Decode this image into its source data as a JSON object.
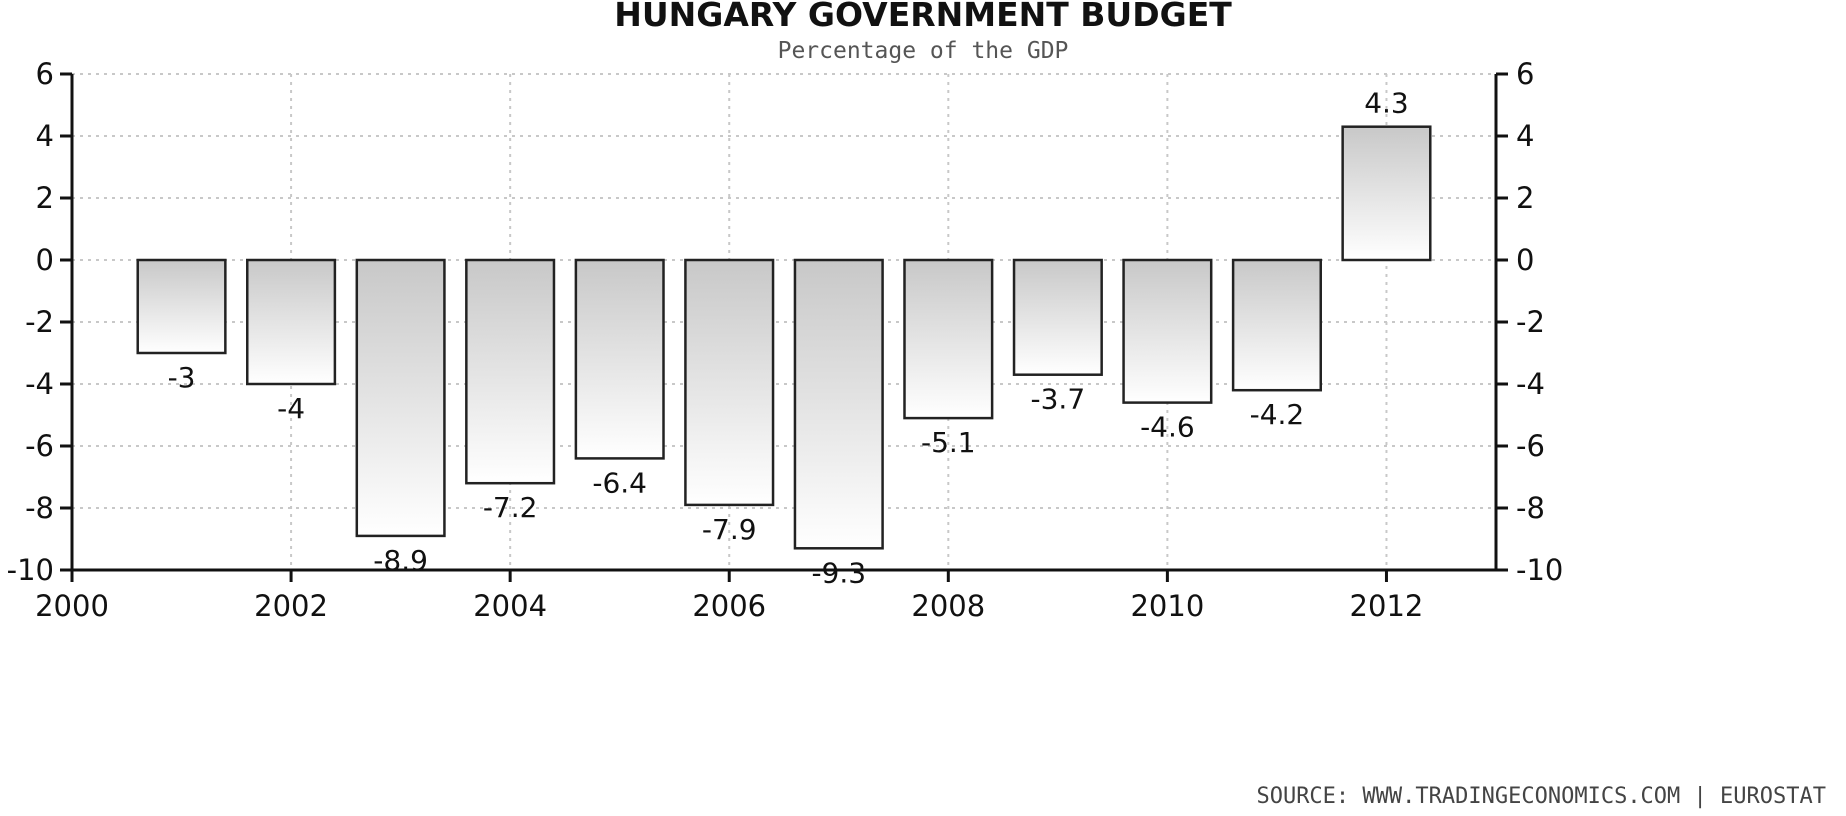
{
  "chart_data": {
    "type": "bar",
    "title": "HUNGARY GOVERNMENT BUDGET",
    "subtitle": "Percentage of the GDP",
    "categories": [
      "2001",
      "2002",
      "2003",
      "2004",
      "2005",
      "2006",
      "2007",
      "2008",
      "2009",
      "2010",
      "2011",
      "2012"
    ],
    "values": [
      -3,
      -4,
      -8.9,
      -7.2,
      -6.4,
      -7.9,
      -9.3,
      -5.1,
      -3.7,
      -4.6,
      -4.2,
      4.3
    ],
    "value_labels": [
      "-3",
      "-4",
      "-8.9",
      "-7.2",
      "-6.4",
      "-7.9",
      "-9.3",
      "-5.1",
      "-3.7",
      "-4.6",
      "-4.2",
      "4.3"
    ],
    "x_ticks": [
      "2000",
      "2002",
      "2004",
      "2006",
      "2008",
      "2010",
      "2012"
    ],
    "x_tick_values": [
      2000,
      2002,
      2004,
      2006,
      2008,
      2010,
      2012
    ],
    "y_ticks": [
      "6",
      "4",
      "2",
      "0",
      "-2",
      "-4",
      "-6",
      "-8",
      "-10"
    ],
    "y_tick_values": [
      6,
      4,
      2,
      0,
      -2,
      -4,
      -6,
      -8,
      -10
    ],
    "xlim": [
      2000,
      2013
    ],
    "ylim": [
      -10,
      6
    ],
    "grid": true,
    "axes": "left-and-right",
    "bar_color_top": "#c8c8c8",
    "bar_color_bottom": "#ffffff",
    "source": "SOURCE:  WWW.TRADINGECONOMICS.COM  |  EUROSTAT"
  }
}
